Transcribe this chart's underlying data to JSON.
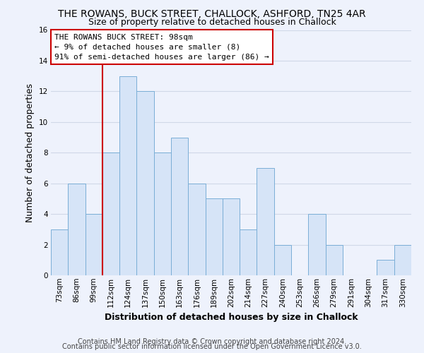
{
  "title": "THE ROWANS, BUCK STREET, CHALLOCK, ASHFORD, TN25 4AR",
  "subtitle": "Size of property relative to detached houses in Challock",
  "xlabel": "Distribution of detached houses by size in Challock",
  "ylabel": "Number of detached properties",
  "categories": [
    "73sqm",
    "86sqm",
    "99sqm",
    "112sqm",
    "124sqm",
    "137sqm",
    "150sqm",
    "163sqm",
    "176sqm",
    "189sqm",
    "202sqm",
    "214sqm",
    "227sqm",
    "240sqm",
    "253sqm",
    "266sqm",
    "279sqm",
    "291sqm",
    "304sqm",
    "317sqm",
    "330sqm"
  ],
  "values": [
    3,
    6,
    4,
    8,
    13,
    12,
    8,
    9,
    6,
    5,
    5,
    3,
    7,
    2,
    0,
    4,
    2,
    0,
    0,
    1,
    2
  ],
  "bar_color": "#d6e4f7",
  "bar_edge_color": "#7aaed6",
  "highlight_index": 2,
  "highlight_line_color": "#cc0000",
  "ylim": [
    0,
    16
  ],
  "yticks": [
    0,
    2,
    4,
    6,
    8,
    10,
    12,
    14,
    16
  ],
  "annotation_title": "THE ROWANS BUCK STREET: 98sqm",
  "annotation_line1": "← 9% of detached houses are smaller (8)",
  "annotation_line2": "91% of semi-detached houses are larger (86) →",
  "annotation_box_color": "#ffffff",
  "annotation_box_edge_color": "#cc0000",
  "footer_line1": "Contains HM Land Registry data © Crown copyright and database right 2024.",
  "footer_line2": "Contains public sector information licensed under the Open Government Licence v3.0.",
  "background_color": "#eef2fc",
  "grid_color": "#d0d8e8",
  "title_fontsize": 10,
  "subtitle_fontsize": 9,
  "axis_label_fontsize": 9,
  "tick_fontsize": 7.5,
  "annotation_fontsize": 8,
  "footer_fontsize": 7
}
